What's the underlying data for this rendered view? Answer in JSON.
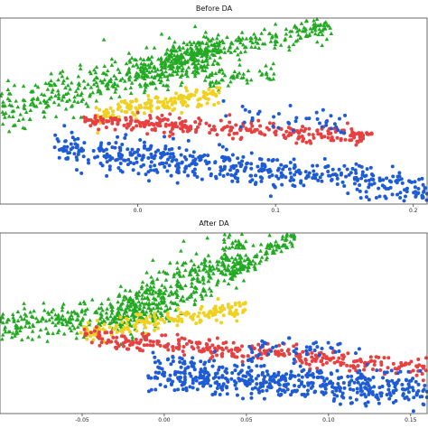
{
  "chart_data": [
    {
      "type": "scatter",
      "title": "Before DA",
      "xlabel": "",
      "ylabel": "",
      "xlim": [
        -0.1,
        0.21
      ],
      "ylim": [
        -1.0,
        1.0
      ],
      "xticks": [
        0.0,
        0.1,
        0.2
      ],
      "xtick_labels": [
        "0.0",
        "0.1",
        "0.2"
      ],
      "grid": false,
      "legend": "none",
      "series": [
        {
          "marker": "triangle",
          "color": "#22aa22",
          "clusters": [
            {
              "x0": -0.1,
              "y0": 0.03,
              "x1": 0.06,
              "y1": 0.62,
              "spread": 0.12,
              "count": 380
            },
            {
              "x0": 0.0,
              "y0": 0.38,
              "x1": 0.05,
              "y1": 0.62,
              "spread": 0.1,
              "count": 140
            },
            {
              "x0": 0.02,
              "y0": 0.58,
              "x1": 0.14,
              "y1": 0.9,
              "spread": 0.06,
              "count": 200
            },
            {
              "x0": 0.05,
              "y0": 0.32,
              "x1": 0.1,
              "y1": 0.42,
              "spread": 0.06,
              "count": 50
            }
          ]
        },
        {
          "marker": "circle",
          "color": "#f0d020",
          "clusters": [
            {
              "x0": -0.03,
              "y0": -0.05,
              "x1": 0.06,
              "y1": 0.2,
              "spread": 0.05,
              "count": 160
            }
          ]
        },
        {
          "marker": "circle",
          "color": "#e84040",
          "clusters": [
            {
              "x0": -0.04,
              "y0": -0.1,
              "x1": 0.17,
              "y1": -0.28,
              "spread": 0.045,
              "count": 300
            }
          ]
        },
        {
          "marker": "circle",
          "color": "#1e5bd6",
          "clusters": [
            {
              "x0": -0.06,
              "y0": -0.4,
              "x1": 0.21,
              "y1": -0.82,
              "spread": 0.09,
              "count": 520
            },
            {
              "x0": 0.06,
              "y0": -0.05,
              "x1": 0.15,
              "y1": -0.1,
              "spread": 0.08,
              "count": 40
            }
          ]
        }
      ]
    },
    {
      "type": "scatter",
      "title": "After DA",
      "xlabel": "",
      "ylabel": "",
      "xlim": [
        -0.1,
        0.16
      ],
      "ylim": [
        -1.0,
        1.0
      ],
      "xticks": [
        -0.05,
        0.0,
        0.05,
        0.1,
        0.15
      ],
      "xtick_labels": [
        "-0.05",
        "0.00",
        "0.05",
        "0.10",
        "0.15"
      ],
      "grid": false,
      "legend": "none",
      "series": [
        {
          "marker": "triangle",
          "color": "#22aa22",
          "clusters": [
            {
              "x0": -0.1,
              "y0": -0.05,
              "x1": 0.0,
              "y1": 0.18,
              "spread": 0.1,
              "count": 260
            },
            {
              "x0": -0.03,
              "y0": 0.05,
              "x1": 0.05,
              "y1": 0.8,
              "spread": 0.14,
              "count": 380
            },
            {
              "x0": 0.04,
              "y0": 0.55,
              "x1": 0.08,
              "y1": 0.98,
              "spread": 0.06,
              "count": 120
            }
          ]
        },
        {
          "marker": "circle",
          "color": "#f0d020",
          "clusters": [
            {
              "x0": -0.05,
              "y0": -0.12,
              "x1": 0.05,
              "y1": 0.18,
              "spread": 0.05,
              "count": 170
            }
          ]
        },
        {
          "marker": "circle",
          "color": "#e84040",
          "clusters": [
            {
              "x0": -0.05,
              "y0": -0.15,
              "x1": 0.16,
              "y1": -0.5,
              "spread": 0.05,
              "count": 320
            }
          ]
        },
        {
          "marker": "circle",
          "color": "#1e5bd6",
          "clusters": [
            {
              "x0": -0.01,
              "y0": -0.55,
              "x1": 0.16,
              "y1": -0.75,
              "spread": 0.1,
              "count": 520
            },
            {
              "x0": 0.05,
              "y0": -0.25,
              "x1": 0.12,
              "y1": -0.3,
              "spread": 0.06,
              "count": 40
            }
          ]
        }
      ]
    }
  ]
}
